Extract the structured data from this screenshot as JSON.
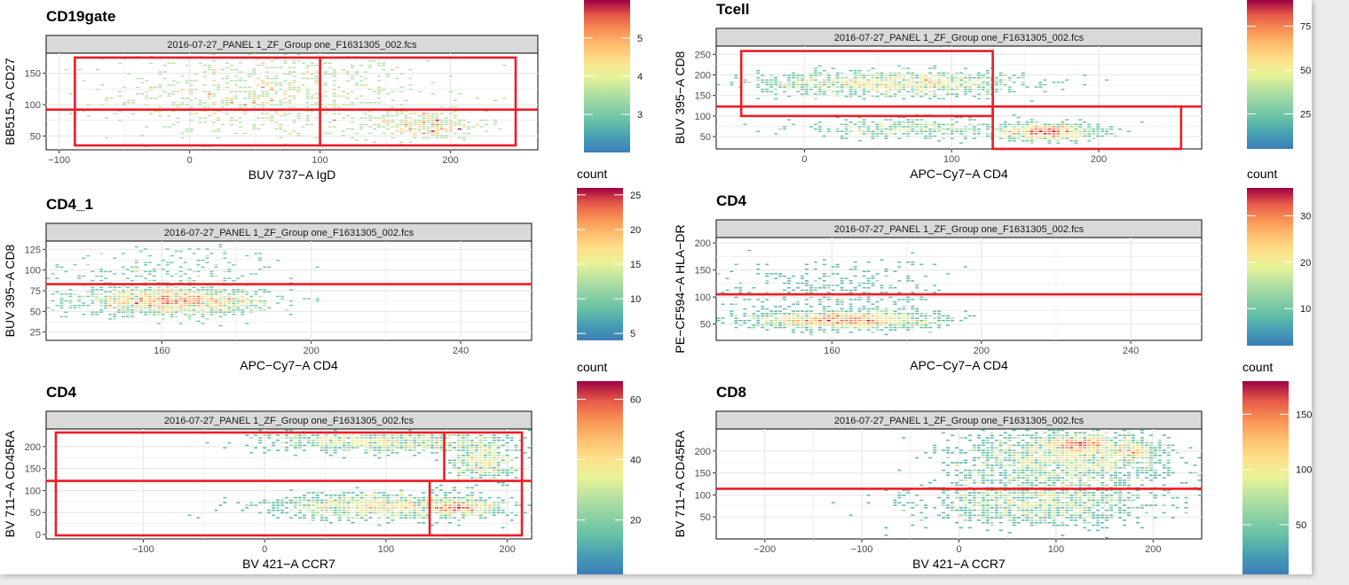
{
  "chart_data": [
    {
      "type": "heatmap",
      "title": "CD19gate",
      "facet": "2016-07-27_PANEL 1_ZF_Group one_F1631305_002.fcs",
      "xlabel": "BUV 737-A IgD",
      "ylabel": "BB515-A CD27",
      "xlim": [
        -110,
        267
      ],
      "ylim": [
        28,
        182
      ],
      "xticks": [
        -100,
        0,
        100,
        200
      ],
      "yticks": [
        50,
        100,
        150
      ],
      "legend": {
        "title": "",
        "min": 2,
        "max": 6,
        "ticks": [
          3,
          4,
          5
        ]
      },
      "clusters": [
        {
          "cx": 60,
          "cy": 115,
          "sx": 60,
          "sy": 35,
          "n": 700
        },
        {
          "cx": 180,
          "cy": 68,
          "sx": 25,
          "sy": 12,
          "n": 250
        }
      ],
      "gates": [
        {
          "shape": "rect",
          "x": [
            -88,
            250
          ],
          "y": [
            35,
            175
          ]
        },
        {
          "shape": "vline",
          "x": 100,
          "y": [
            35,
            175
          ]
        },
        {
          "shape": "hline",
          "y": 92
        }
      ]
    },
    {
      "type": "heatmap",
      "title": "Tcell",
      "facet": "2016-07-27_PANEL 1_ZF_Group one_F1631305_002.fcs",
      "xlabel": "APC-Cy7-A CD4",
      "ylabel": "BUV 395-A CD8",
      "xlim": [
        -60,
        270
      ],
      "ylim": [
        20,
        270
      ],
      "xticks": [
        0,
        100,
        200
      ],
      "yticks": [
        50,
        100,
        150,
        200,
        250
      ],
      "legend": {
        "title": "count",
        "min": 5,
        "max": 90,
        "ticks": [
          25,
          50,
          75
        ]
      },
      "clusters": [
        {
          "cx": 60,
          "cy": 180,
          "sx": 45,
          "sy": 15,
          "n": 1000
        },
        {
          "cx": 165,
          "cy": 62,
          "sx": 18,
          "sy": 10,
          "n": 600
        },
        {
          "cx": 70,
          "cy": 70,
          "sx": 40,
          "sy": 12,
          "n": 300
        }
      ],
      "gates": [
        {
          "shape": "rect",
          "x": [
            -43,
            128
          ],
          "y": [
            100,
            258
          ]
        },
        {
          "shape": "rect",
          "x": [
            128,
            256
          ],
          "y": [
            20,
            123
          ]
        },
        {
          "shape": "hline",
          "y": 123
        }
      ]
    },
    {
      "type": "heatmap",
      "title": "CD4_1",
      "facet": "2016-07-27_PANEL 1_ZF_Group one_F1631305_002.fcs",
      "xlabel": "APC-Cy7-A CD4",
      "ylabel": "BUV 395-A CD8",
      "xlim": [
        129,
        259
      ],
      "ylim": [
        15,
        135
      ],
      "xticks": [
        160,
        200,
        240
      ],
      "yticks": [
        25,
        50,
        75,
        100,
        125
      ],
      "legend": {
        "title": "count",
        "min": 4,
        "max": 26,
        "ticks": [
          5,
          10,
          15,
          20,
          25
        ]
      },
      "clusters": [
        {
          "cx": 163,
          "cy": 62,
          "sx": 12,
          "sy": 8,
          "n": 1300
        },
        {
          "cx": 160,
          "cy": 100,
          "sx": 18,
          "sy": 15,
          "n": 200
        }
      ],
      "gates": [
        {
          "shape": "hline",
          "y": 83
        }
      ]
    },
    {
      "type": "heatmap",
      "title": "CD4",
      "facet": "2016-07-27_PANEL 1_ZF_Group one_F1631305_002.fcs",
      "xlabel": "APC-Cy7-A CD4",
      "ylabel": "PE-CF594-A HLA-DR",
      "xlim": [
        129,
        259
      ],
      "ylim": [
        20,
        210
      ],
      "xticks": [
        160,
        200,
        240
      ],
      "yticks": [
        50,
        100,
        150,
        200
      ],
      "legend": {
        "title": "count",
        "min": 2,
        "max": 36,
        "ticks": [
          10,
          20,
          30
        ]
      },
      "clusters": [
        {
          "cx": 163,
          "cy": 58,
          "sx": 12,
          "sy": 8,
          "n": 1300
        },
        {
          "cx": 160,
          "cy": 110,
          "sx": 15,
          "sy": 30,
          "n": 300
        }
      ],
      "gates": [
        {
          "shape": "hline",
          "y": 105
        }
      ]
    },
    {
      "type": "heatmap",
      "title": "CD4",
      "facet": "2016-07-27_PANEL 1_ZF_Group one_F1631305_002.fcs",
      "xlabel": "BV 421-A CCR7",
      "ylabel": "BV 711-A CD45RA",
      "xlim": [
        -180,
        220
      ],
      "ylim": [
        -10,
        240
      ],
      "xticks": [
        -100,
        0,
        100,
        200
      ],
      "yticks": [
        0,
        50,
        100,
        150,
        200
      ],
      "legend": {
        "title": "count",
        "min": 2,
        "max": 66,
        "ticks": [
          20,
          40,
          60
        ]
      },
      "clusters": [
        {
          "cx": 100,
          "cy": 210,
          "sx": 50,
          "sy": 12,
          "n": 700
        },
        {
          "cx": 180,
          "cy": 170,
          "sx": 12,
          "sy": 25,
          "n": 400
        },
        {
          "cx": 100,
          "cy": 65,
          "sx": 50,
          "sy": 15,
          "n": 1000
        },
        {
          "cx": 160,
          "cy": 60,
          "sx": 15,
          "sy": 8,
          "n": 300
        }
      ],
      "gates": [
        {
          "shape": "rect",
          "x": [
            -172,
            212
          ],
          "y": [
            -2,
            232
          ]
        },
        {
          "shape": "hline",
          "y": 122
        },
        {
          "shape": "vline",
          "x": 148,
          "y": [
            122,
            232
          ]
        },
        {
          "shape": "vline",
          "x": 136,
          "y": [
            -2,
            122
          ]
        }
      ]
    },
    {
      "type": "heatmap",
      "title": "CD8",
      "facet": "2016-07-27_PANEL 1_ZF_Group one_F1631305_002.fcs",
      "xlabel": "BV 421-A CCR7",
      "ylabel": "BV 711-A CD45RA",
      "xlim": [
        -250,
        250
      ],
      "ylim": [
        0,
        250
      ],
      "xticks": [
        -200,
        -100,
        0,
        100,
        200
      ],
      "yticks": [
        50,
        100,
        150,
        200
      ],
      "legend": {
        "title": "count",
        "min": 5,
        "max": 180,
        "ticks": [
          50,
          100,
          150
        ]
      },
      "clusters": [
        {
          "cx": 110,
          "cy": 180,
          "sx": 55,
          "sy": 35,
          "n": 1500
        },
        {
          "cx": 125,
          "cy": 215,
          "sx": 20,
          "sy": 10,
          "n": 500
        },
        {
          "cx": 180,
          "cy": 200,
          "sx": 12,
          "sy": 10,
          "n": 200
        },
        {
          "cx": 80,
          "cy": 80,
          "sx": 60,
          "sy": 25,
          "n": 1000
        }
      ],
      "gates": [
        {
          "shape": "hline",
          "y": 114
        }
      ]
    }
  ]
}
